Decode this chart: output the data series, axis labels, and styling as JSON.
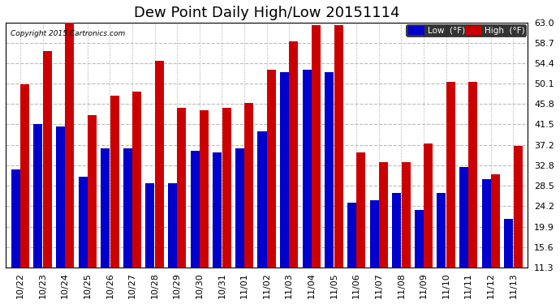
{
  "title": "Dew Point Daily High/Low 20151114",
  "copyright": "Copyright 2015 Cartronics.com",
  "categories": [
    "10/22",
    "10/23",
    "10/24",
    "10/25",
    "10/26",
    "10/27",
    "10/28",
    "10/29",
    "10/30",
    "10/31",
    "11/01",
    "11/02",
    "11/03",
    "11/04",
    "11/05",
    "11/06",
    "11/07",
    "11/08",
    "11/09",
    "11/10",
    "11/11",
    "11/12",
    "11/13"
  ],
  "low_values": [
    32.0,
    41.5,
    41.0,
    30.5,
    36.5,
    36.5,
    29.0,
    29.0,
    36.0,
    35.5,
    36.5,
    40.0,
    52.5,
    53.0,
    52.5,
    25.0,
    25.5,
    27.0,
    23.5,
    27.0,
    32.5,
    30.0,
    21.5
  ],
  "high_values": [
    50.0,
    57.0,
    63.5,
    43.5,
    47.5,
    48.5,
    55.0,
    45.0,
    44.5,
    45.0,
    46.0,
    53.0,
    59.0,
    62.5,
    62.5,
    35.5,
    33.5,
    33.5,
    37.5,
    50.5,
    50.5,
    31.0,
    37.0
  ],
  "low_color": "#0000cc",
  "high_color": "#cc0000",
  "bg_color": "#ffffff",
  "plot_bg_color": "#ffffff",
  "ylim_min": 11.3,
  "ylim_max": 63.0,
  "yticks": [
    11.3,
    15.6,
    19.9,
    24.2,
    28.5,
    32.8,
    37.2,
    41.5,
    45.8,
    50.1,
    54.4,
    58.7,
    63.0
  ],
  "grid_color": "#bbbbbb",
  "title_fontsize": 13,
  "tick_fontsize": 8,
  "bar_width": 0.4,
  "bar_gap": 0.01
}
